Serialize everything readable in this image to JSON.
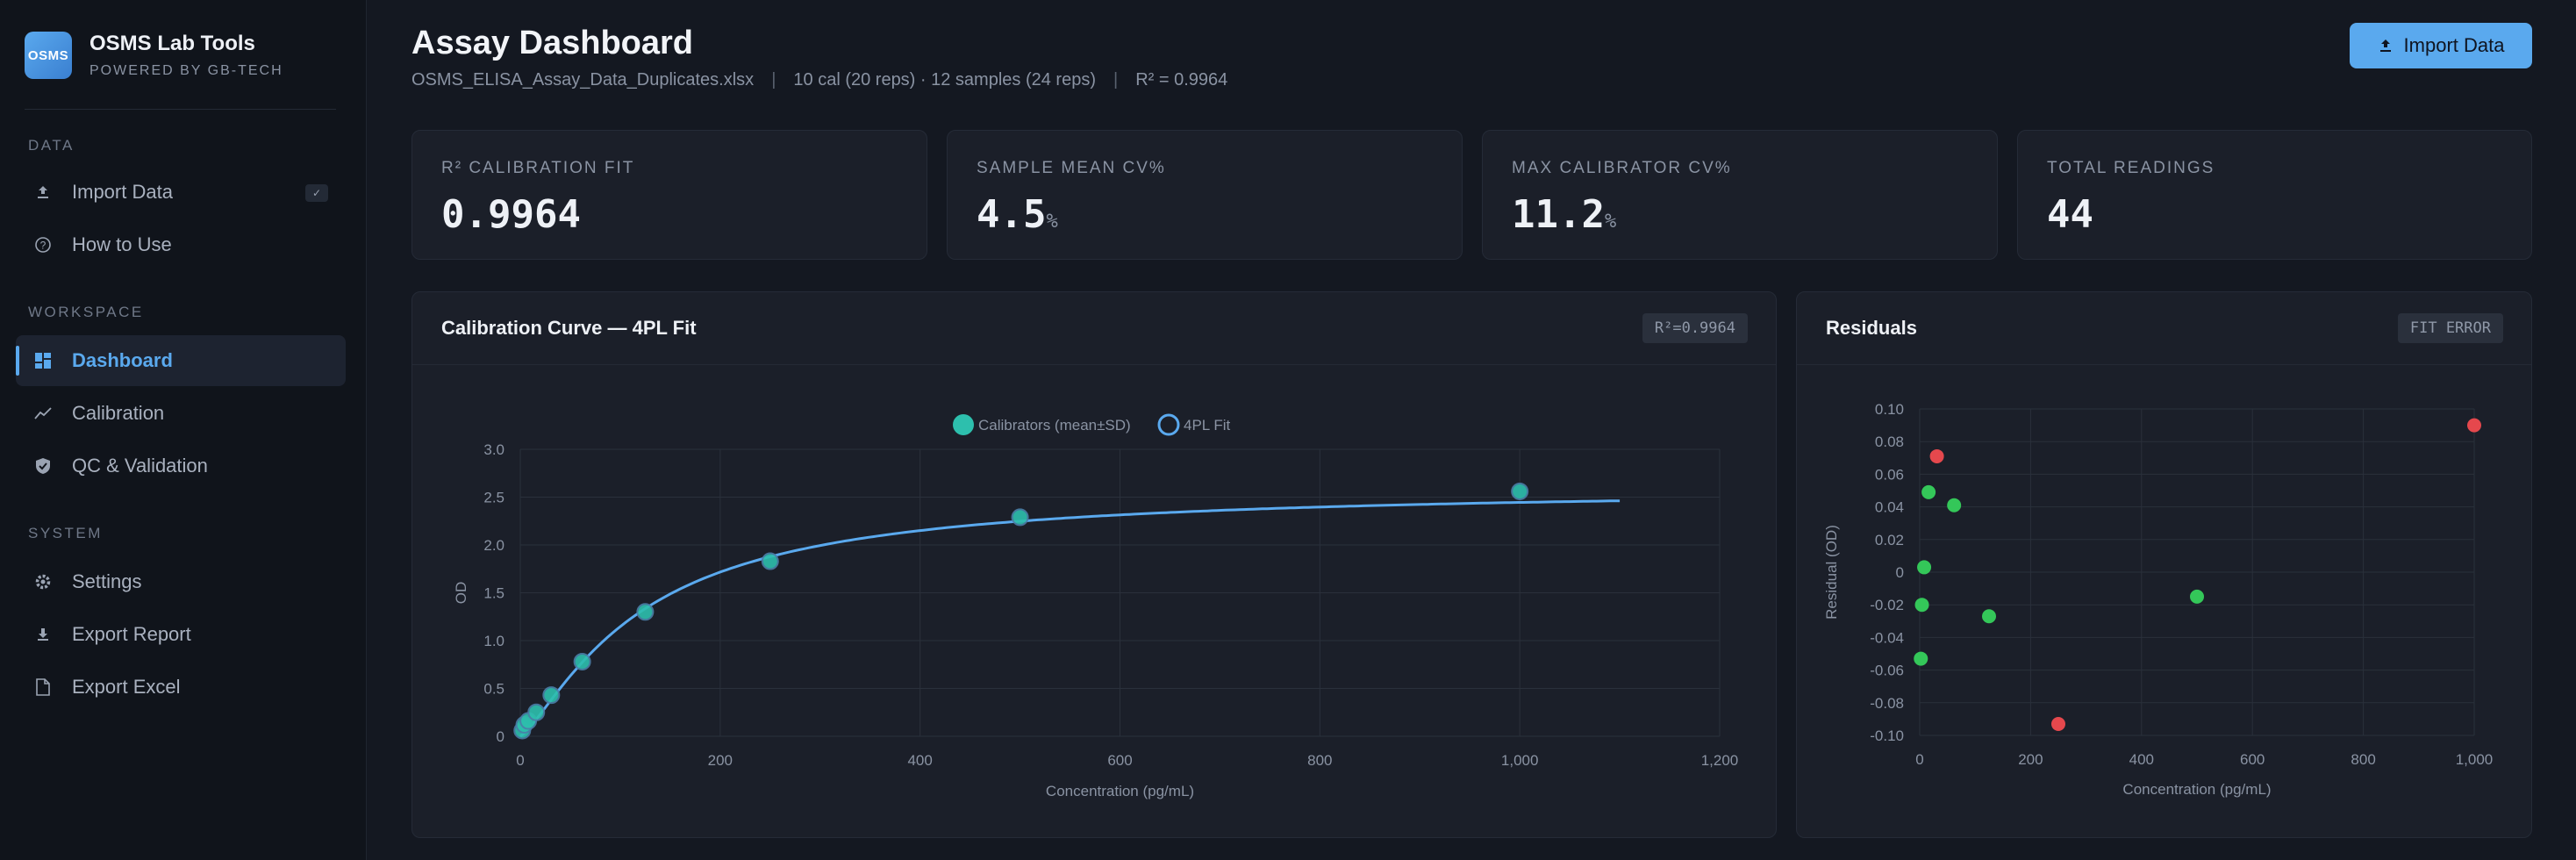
{
  "sidebar": {
    "logo": "OSMS",
    "title": "OSMS Lab Tools",
    "subtitle": "POWERED BY GB-TECH",
    "sections": {
      "data": "DATA",
      "workspace": "WORKSPACE",
      "system": "SYSTEM"
    },
    "items": {
      "import": "Import Data",
      "import_badge": "✓",
      "how": "How to Use",
      "dashboard": "Dashboard",
      "calibration": "Calibration",
      "qc": "QC & Validation",
      "settings": "Settings",
      "export_report": "Export Report",
      "export_excel": "Export Excel"
    },
    "active_item": "Dashboard"
  },
  "header": {
    "title": "Assay Dashboard",
    "file": "OSMS_ELISA_Assay_Data_Duplicates.xlsx",
    "summary": "10 cal (20 reps) · 12 samples (24 reps)",
    "r2": "R² = 0.9964",
    "separator": "|",
    "import_button": "Import Data"
  },
  "stats": [
    {
      "label": "R² CALIBRATION FIT",
      "value": "0.9964",
      "unit": ""
    },
    {
      "label": "SAMPLE MEAN CV%",
      "value": "4.5",
      "unit": "%"
    },
    {
      "label": "MAX CALIBRATOR CV%",
      "value": "11.2",
      "unit": "%"
    },
    {
      "label": "TOTAL READINGS",
      "value": "44",
      "unit": ""
    }
  ],
  "calibration_panel": {
    "title": "Calibration Curve — 4PL Fit",
    "badge": "R²=0.9964"
  },
  "residuals_panel": {
    "title": "Residuals",
    "badge": "FIT ERROR"
  },
  "colors": {
    "accent": "#5aa9ee",
    "calibrator": "#2dbfad",
    "fit_line": "#5aa9ee",
    "residual_ok": "#34c759",
    "residual_bad": "#e5484d"
  },
  "chart_data": [
    {
      "type": "scatter",
      "title": "Calibration Curve — 4PL Fit",
      "xlabel": "Concentration (pg/mL)",
      "ylabel": "OD",
      "xlim": [
        0,
        1200
      ],
      "ylim": [
        0,
        3.0
      ],
      "xticks": [
        0,
        200,
        400,
        600,
        800,
        1000,
        1200
      ],
      "xtick_labels": [
        "0",
        "200",
        "400",
        "600",
        "800",
        "1,000",
        "1,200"
      ],
      "yticks": [
        0,
        0.5,
        1.0,
        1.5,
        2.0,
        2.5,
        3.0
      ],
      "ytick_labels": [
        "0",
        "0.5",
        "1.0",
        "1.5",
        "2.0",
        "2.5",
        "3.0"
      ],
      "grid": true,
      "legend": "top-center",
      "series": [
        {
          "name": "Calibrators (mean±SD)",
          "kind": "points",
          "x": [
            2,
            4,
            8,
            16,
            31,
            62,
            125,
            250,
            500,
            1000
          ],
          "y": [
            0.06,
            0.12,
            0.16,
            0.25,
            0.43,
            0.78,
            1.3,
            1.83,
            2.29,
            2.56
          ]
        },
        {
          "name": "4PL Fit",
          "kind": "line",
          "model": {
            "a": 0.0,
            "b": 1.3,
            "c": 120,
            "d": 2.6
          },
          "x_range": [
            0,
            1100
          ]
        }
      ]
    },
    {
      "type": "scatter",
      "title": "Residuals",
      "xlabel": "Concentration (pg/mL)",
      "ylabel": "Residual (OD)",
      "xlim": [
        0,
        1000
      ],
      "ylim": [
        -0.1,
        0.1
      ],
      "xticks": [
        0,
        200,
        400,
        600,
        800,
        1000
      ],
      "xtick_labels": [
        "0",
        "200",
        "400",
        "600",
        "800",
        "1,000"
      ],
      "yticks": [
        -0.1,
        -0.08,
        -0.06,
        -0.04,
        -0.02,
        0,
        0.02,
        0.04,
        0.06,
        0.08,
        0.1
      ],
      "ytick_labels": [
        "-0.10",
        "-0.08",
        "-0.06",
        "-0.04",
        "-0.02",
        "0",
        "0.02",
        "0.04",
        "0.06",
        "0.08",
        "0.10"
      ],
      "grid": true,
      "series": [
        {
          "kind": "points",
          "x": [
            2,
            4,
            8,
            16,
            31,
            62,
            125,
            250,
            500,
            1000
          ],
          "y": [
            -0.053,
            -0.02,
            0.003,
            0.049,
            0.071,
            0.041,
            -0.027,
            -0.093,
            -0.015,
            0.09
          ],
          "flagged": [
            false,
            false,
            false,
            false,
            true,
            false,
            false,
            true,
            false,
            true
          ]
        }
      ]
    }
  ]
}
